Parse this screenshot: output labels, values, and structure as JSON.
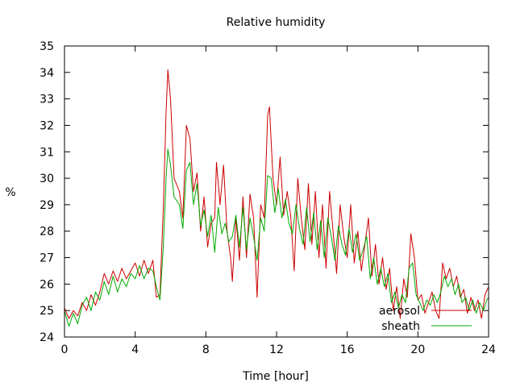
{
  "chart_data": {
    "type": "line",
    "title": "Relative humidity",
    "xlabel": "Time [hour]",
    "ylabel": "%",
    "xlim": [
      0,
      24
    ],
    "ylim": [
      24,
      35
    ],
    "xticks": [
      0,
      4,
      8,
      12,
      16,
      20,
      24
    ],
    "yticks": [
      24,
      25,
      26,
      27,
      28,
      29,
      30,
      31,
      32,
      33,
      34,
      35
    ],
    "grid": false,
    "legend_position": "bottom-right",
    "series": [
      {
        "name": "aerosol",
        "color": "#cc0000",
        "points": [
          [
            0.0,
            25.1
          ],
          [
            0.25,
            24.7
          ],
          [
            0.5,
            25.0
          ],
          [
            0.75,
            24.8
          ],
          [
            1.0,
            25.3
          ],
          [
            1.25,
            25.0
          ],
          [
            1.5,
            25.6
          ],
          [
            1.75,
            25.2
          ],
          [
            2.0,
            25.7
          ],
          [
            2.25,
            26.4
          ],
          [
            2.5,
            26.0
          ],
          [
            2.75,
            26.5
          ],
          [
            3.0,
            26.1
          ],
          [
            3.25,
            26.6
          ],
          [
            3.5,
            26.2
          ],
          [
            3.75,
            26.5
          ],
          [
            4.0,
            26.8
          ],
          [
            4.25,
            26.3
          ],
          [
            4.5,
            26.9
          ],
          [
            4.75,
            26.4
          ],
          [
            5.0,
            26.9
          ],
          [
            5.2,
            25.5
          ],
          [
            5.4,
            25.6
          ],
          [
            5.6,
            29.0
          ],
          [
            5.75,
            32.5
          ],
          [
            5.85,
            34.1
          ],
          [
            6.0,
            33.0
          ],
          [
            6.2,
            30.0
          ],
          [
            6.5,
            29.5
          ],
          [
            6.7,
            28.5
          ],
          [
            6.9,
            32.0
          ],
          [
            7.1,
            31.5
          ],
          [
            7.3,
            29.5
          ],
          [
            7.5,
            30.2
          ],
          [
            7.7,
            28.0
          ],
          [
            7.9,
            29.3
          ],
          [
            8.1,
            27.4
          ],
          [
            8.3,
            28.3
          ],
          [
            8.5,
            28.5
          ],
          [
            8.6,
            30.6
          ],
          [
            8.8,
            29.0
          ],
          [
            9.0,
            30.5
          ],
          [
            9.2,
            28.0
          ],
          [
            9.4,
            27.0
          ],
          [
            9.5,
            26.1
          ],
          [
            9.7,
            28.5
          ],
          [
            9.9,
            26.9
          ],
          [
            10.1,
            29.3
          ],
          [
            10.3,
            27.0
          ],
          [
            10.5,
            29.4
          ],
          [
            10.7,
            28.5
          ],
          [
            10.9,
            25.5
          ],
          [
            11.1,
            29.0
          ],
          [
            11.3,
            28.5
          ],
          [
            11.5,
            32.4
          ],
          [
            11.6,
            32.7
          ],
          [
            11.8,
            30.0
          ],
          [
            12.0,
            29.0
          ],
          [
            12.2,
            30.8
          ],
          [
            12.4,
            28.6
          ],
          [
            12.6,
            29.5
          ],
          [
            12.8,
            28.6
          ],
          [
            13.0,
            26.5
          ],
          [
            13.2,
            30.0
          ],
          [
            13.4,
            28.5
          ],
          [
            13.6,
            27.3
          ],
          [
            13.8,
            29.8
          ],
          [
            14.0,
            27.5
          ],
          [
            14.2,
            29.5
          ],
          [
            14.4,
            27.0
          ],
          [
            14.6,
            29.0
          ],
          [
            14.8,
            26.6
          ],
          [
            15.0,
            29.5
          ],
          [
            15.2,
            28.0
          ],
          [
            15.4,
            26.4
          ],
          [
            15.6,
            29.0
          ],
          [
            15.8,
            27.8
          ],
          [
            16.0,
            27.0
          ],
          [
            16.2,
            29.0
          ],
          [
            16.4,
            26.8
          ],
          [
            16.6,
            28.0
          ],
          [
            16.8,
            26.5
          ],
          [
            17.0,
            27.5
          ],
          [
            17.2,
            28.5
          ],
          [
            17.4,
            26.3
          ],
          [
            17.6,
            27.5
          ],
          [
            17.8,
            26.0
          ],
          [
            18.0,
            27.0
          ],
          [
            18.2,
            25.8
          ],
          [
            18.4,
            26.6
          ],
          [
            18.6,
            25.0
          ],
          [
            18.8,
            25.9
          ],
          [
            19.0,
            24.7
          ],
          [
            19.2,
            26.2
          ],
          [
            19.4,
            25.5
          ],
          [
            19.6,
            27.9
          ],
          [
            19.8,
            27.0
          ],
          [
            20.0,
            25.4
          ],
          [
            20.2,
            25.6
          ],
          [
            20.4,
            24.9
          ],
          [
            20.6,
            25.3
          ],
          [
            20.8,
            25.7
          ],
          [
            21.0,
            25.0
          ],
          [
            21.2,
            24.7
          ],
          [
            21.4,
            26.8
          ],
          [
            21.6,
            26.2
          ],
          [
            21.8,
            26.6
          ],
          [
            22.0,
            25.9
          ],
          [
            22.2,
            26.3
          ],
          [
            22.4,
            25.5
          ],
          [
            22.6,
            25.8
          ],
          [
            22.8,
            24.9
          ],
          [
            23.0,
            25.5
          ],
          [
            23.2,
            25.0
          ],
          [
            23.4,
            25.4
          ],
          [
            23.6,
            24.7
          ],
          [
            23.8,
            25.6
          ],
          [
            24.0,
            25.9
          ]
        ]
      },
      {
        "name": "sheath",
        "color": "#00aa00",
        "points": [
          [
            0.0,
            25.0
          ],
          [
            0.25,
            24.4
          ],
          [
            0.5,
            24.9
          ],
          [
            0.75,
            24.5
          ],
          [
            1.0,
            25.2
          ],
          [
            1.25,
            25.5
          ],
          [
            1.5,
            25.0
          ],
          [
            1.75,
            25.7
          ],
          [
            2.0,
            25.4
          ],
          [
            2.25,
            26.1
          ],
          [
            2.5,
            25.6
          ],
          [
            2.75,
            26.3
          ],
          [
            3.0,
            25.7
          ],
          [
            3.25,
            26.2
          ],
          [
            3.5,
            25.9
          ],
          [
            3.75,
            26.4
          ],
          [
            4.0,
            26.2
          ],
          [
            4.25,
            26.7
          ],
          [
            4.5,
            26.2
          ],
          [
            4.75,
            26.6
          ],
          [
            5.0,
            26.5
          ],
          [
            5.2,
            25.9
          ],
          [
            5.4,
            25.4
          ],
          [
            5.6,
            27.5
          ],
          [
            5.75,
            30.0
          ],
          [
            5.85,
            31.1
          ],
          [
            6.0,
            30.5
          ],
          [
            6.2,
            29.3
          ],
          [
            6.5,
            29.0
          ],
          [
            6.7,
            28.1
          ],
          [
            6.9,
            30.3
          ],
          [
            7.1,
            30.6
          ],
          [
            7.3,
            29.0
          ],
          [
            7.5,
            29.8
          ],
          [
            7.7,
            28.2
          ],
          [
            7.9,
            28.8
          ],
          [
            8.1,
            27.8
          ],
          [
            8.3,
            28.6
          ],
          [
            8.5,
            27.2
          ],
          [
            8.7,
            28.9
          ],
          [
            8.9,
            27.9
          ],
          [
            9.1,
            28.3
          ],
          [
            9.3,
            27.6
          ],
          [
            9.5,
            27.8
          ],
          [
            9.7,
            28.6
          ],
          [
            9.9,
            27.4
          ],
          [
            10.1,
            28.9
          ],
          [
            10.3,
            27.3
          ],
          [
            10.5,
            28.5
          ],
          [
            10.7,
            27.8
          ],
          [
            10.9,
            26.9
          ],
          [
            11.1,
            28.5
          ],
          [
            11.3,
            28.0
          ],
          [
            11.5,
            30.1
          ],
          [
            11.7,
            30.0
          ],
          [
            11.9,
            28.7
          ],
          [
            12.1,
            29.6
          ],
          [
            12.3,
            28.5
          ],
          [
            12.5,
            29.2
          ],
          [
            12.7,
            28.3
          ],
          [
            12.9,
            27.9
          ],
          [
            13.1,
            29.0
          ],
          [
            13.3,
            28.1
          ],
          [
            13.5,
            27.5
          ],
          [
            13.7,
            28.9
          ],
          [
            13.9,
            27.6
          ],
          [
            14.1,
            28.7
          ],
          [
            14.3,
            27.3
          ],
          [
            14.5,
            28.4
          ],
          [
            14.7,
            27.0
          ],
          [
            14.9,
            28.5
          ],
          [
            15.1,
            27.8
          ],
          [
            15.3,
            26.9
          ],
          [
            15.5,
            28.2
          ],
          [
            15.7,
            27.5
          ],
          [
            15.9,
            27.1
          ],
          [
            16.1,
            28.1
          ],
          [
            16.3,
            27.2
          ],
          [
            16.5,
            27.9
          ],
          [
            16.7,
            26.9
          ],
          [
            16.9,
            27.3
          ],
          [
            17.1,
            27.8
          ],
          [
            17.3,
            26.2
          ],
          [
            17.5,
            27.0
          ],
          [
            17.7,
            26.0
          ],
          [
            17.9,
            26.6
          ],
          [
            18.1,
            25.9
          ],
          [
            18.3,
            26.4
          ],
          [
            18.5,
            25.3
          ],
          [
            18.7,
            25.7
          ],
          [
            18.9,
            25.1
          ],
          [
            19.1,
            25.6
          ],
          [
            19.3,
            25.3
          ],
          [
            19.5,
            26.6
          ],
          [
            19.7,
            26.8
          ],
          [
            19.9,
            25.6
          ],
          [
            20.1,
            25.3
          ],
          [
            20.3,
            25.0
          ],
          [
            20.5,
            25.4
          ],
          [
            20.7,
            25.2
          ],
          [
            20.9,
            25.6
          ],
          [
            21.1,
            25.3
          ],
          [
            21.3,
            25.7
          ],
          [
            21.5,
            26.3
          ],
          [
            21.7,
            25.9
          ],
          [
            21.9,
            26.2
          ],
          [
            22.1,
            25.6
          ],
          [
            22.3,
            26.0
          ],
          [
            22.5,
            25.3
          ],
          [
            22.7,
            25.5
          ],
          [
            22.9,
            25.0
          ],
          [
            23.1,
            25.4
          ],
          [
            23.3,
            24.9
          ],
          [
            23.5,
            25.3
          ],
          [
            23.7,
            25.0
          ],
          [
            23.9,
            25.4
          ],
          [
            24.0,
            25.5
          ]
        ]
      }
    ]
  }
}
